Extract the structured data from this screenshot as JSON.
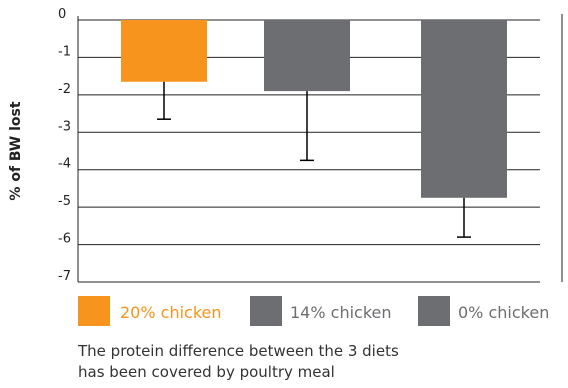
{
  "chart_data": {
    "type": "bar",
    "ylabel": "% of BW lost",
    "ylim": [
      -7,
      0
    ],
    "yticks": [
      0,
      -1,
      -2,
      -3,
      -4,
      -5,
      -6,
      -7
    ],
    "ytick_labels": [
      "0",
      "-1",
      "-2",
      "-3",
      "-4",
      "-5",
      "-6",
      "-7"
    ],
    "grid": true,
    "legend_placement": "bottom",
    "categories": [
      "20% chicken",
      "14% chicken",
      "0% chicken"
    ],
    "values": [
      -1.65,
      -1.9,
      -4.75
    ],
    "error_bars": [
      1.0,
      1.85,
      1.05
    ],
    "colors": [
      "#f7941d",
      "#6d6e71",
      "#6d6e71"
    ],
    "legend_text_colors": [
      "#f7941d",
      "#6d6e71",
      "#6d6e71"
    ]
  },
  "note": {
    "line1": "The protein difference between the 3 diets",
    "line2": "has been covered by poultry meal"
  }
}
